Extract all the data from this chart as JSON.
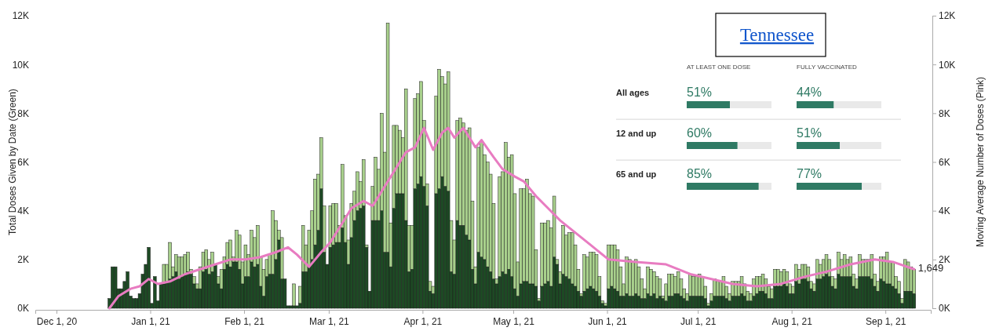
{
  "chart_data": [
    {
      "type": "bar",
      "stacked": true,
      "ylabel": "Total Doses Given by Date (Green)",
      "y2label": "Moving Average Number of Doses (Pink)",
      "x": [
        "2020-12-18",
        "2020-12-19",
        "2020-12-20",
        "2020-12-21",
        "2020-12-22",
        "2020-12-23",
        "2020-12-24",
        "2020-12-25",
        "2020-12-26",
        "2020-12-27",
        "2020-12-28",
        "2020-12-29",
        "2020-12-30",
        "2020-12-31",
        "2021-01-01",
        "2021-01-02",
        "2021-01-03",
        "2021-01-04",
        "2021-01-05",
        "2021-01-06",
        "2021-01-07",
        "2021-01-08",
        "2021-01-09",
        "2021-01-10",
        "2021-01-11",
        "2021-01-12",
        "2021-01-13",
        "2021-01-14",
        "2021-01-15",
        "2021-01-16",
        "2021-01-17",
        "2021-01-18",
        "2021-01-19",
        "2021-01-20",
        "2021-01-21",
        "2021-01-22",
        "2021-01-23",
        "2021-01-24",
        "2021-01-25",
        "2021-01-26",
        "2021-01-27",
        "2021-01-28",
        "2021-01-29",
        "2021-01-30",
        "2021-01-31",
        "2021-02-01",
        "2021-02-02",
        "2021-02-03",
        "2021-02-04",
        "2021-02-05",
        "2021-02-06",
        "2021-02-07",
        "2021-02-08",
        "2021-02-09",
        "2021-02-10",
        "2021-02-11",
        "2021-02-12",
        "2021-02-13",
        "2021-02-14",
        "2021-02-15",
        "2021-02-16",
        "2021-02-17",
        "2021-02-18",
        "2021-02-19",
        "2021-02-20",
        "2021-02-21",
        "2021-02-22",
        "2021-02-23",
        "2021-02-24",
        "2021-02-25",
        "2021-02-26",
        "2021-02-27",
        "2021-02-28",
        "2021-03-01",
        "2021-03-02",
        "2021-03-03",
        "2021-03-04",
        "2021-03-05",
        "2021-03-06",
        "2021-03-07",
        "2021-03-08",
        "2021-03-09",
        "2021-03-10",
        "2021-03-11",
        "2021-03-12",
        "2021-03-13",
        "2021-03-14",
        "2021-03-15",
        "2021-03-16",
        "2021-03-17",
        "2021-03-18",
        "2021-03-19",
        "2021-03-20",
        "2021-03-21",
        "2021-03-22",
        "2021-03-23",
        "2021-03-24",
        "2021-03-25",
        "2021-03-26",
        "2021-03-27",
        "2021-03-28",
        "2021-03-29",
        "2021-03-30",
        "2021-03-31",
        "2021-04-01",
        "2021-04-02",
        "2021-04-03",
        "2021-04-04",
        "2021-04-05",
        "2021-04-06",
        "2021-04-07",
        "2021-04-08",
        "2021-04-09",
        "2021-04-10",
        "2021-04-11",
        "2021-04-12",
        "2021-04-13",
        "2021-04-14",
        "2021-04-15",
        "2021-04-16",
        "2021-04-17",
        "2021-04-18",
        "2021-04-19",
        "2021-04-20",
        "2021-04-21",
        "2021-04-22",
        "2021-04-23",
        "2021-04-24",
        "2021-04-25",
        "2021-04-26",
        "2021-04-27",
        "2021-04-28",
        "2021-04-29",
        "2021-04-30",
        "2021-05-01",
        "2021-05-02",
        "2021-05-03",
        "2021-05-04",
        "2021-05-05",
        "2021-05-06",
        "2021-05-07",
        "2021-05-08",
        "2021-05-09",
        "2021-05-10",
        "2021-05-11",
        "2021-05-12",
        "2021-05-13",
        "2021-05-14",
        "2021-05-15",
        "2021-05-16",
        "2021-05-17",
        "2021-05-18",
        "2021-05-19",
        "2021-05-20",
        "2021-05-21",
        "2021-05-22",
        "2021-05-23",
        "2021-05-24",
        "2021-05-25",
        "2021-05-26",
        "2021-05-27",
        "2021-05-28",
        "2021-05-29",
        "2021-05-30",
        "2021-05-31",
        "2021-06-01",
        "2021-06-02",
        "2021-06-03",
        "2021-06-04",
        "2021-06-05",
        "2021-06-06",
        "2021-06-07",
        "2021-06-08",
        "2021-06-09",
        "2021-06-10",
        "2021-06-11",
        "2021-06-12",
        "2021-06-13",
        "2021-06-14",
        "2021-06-15",
        "2021-06-16",
        "2021-06-17",
        "2021-06-18",
        "2021-06-19",
        "2021-06-20",
        "2021-06-21",
        "2021-06-22",
        "2021-06-23",
        "2021-06-24",
        "2021-06-25",
        "2021-06-26",
        "2021-06-27",
        "2021-06-28",
        "2021-06-29",
        "2021-06-30",
        "2021-07-01",
        "2021-07-02",
        "2021-07-03",
        "2021-07-04",
        "2021-07-05",
        "2021-07-06",
        "2021-07-07",
        "2021-07-08",
        "2021-07-09",
        "2021-07-10",
        "2021-07-11",
        "2021-07-12",
        "2021-07-13",
        "2021-07-14",
        "2021-07-15",
        "2021-07-16",
        "2021-07-17",
        "2021-07-18",
        "2021-07-19",
        "2021-07-20",
        "2021-07-21",
        "2021-07-22",
        "2021-07-23",
        "2021-07-24",
        "2021-07-25",
        "2021-07-26",
        "2021-07-27",
        "2021-07-28",
        "2021-07-29",
        "2021-07-30",
        "2021-07-31",
        "2021-08-01",
        "2021-08-02",
        "2021-08-03",
        "2021-08-04",
        "2021-08-05",
        "2021-08-06",
        "2021-08-07",
        "2021-08-08",
        "2021-08-09",
        "2021-08-10",
        "2021-08-11",
        "2021-08-12",
        "2021-08-13",
        "2021-08-14",
        "2021-08-15",
        "2021-08-16",
        "2021-08-17",
        "2021-08-18",
        "2021-08-19",
        "2021-08-20",
        "2021-08-21",
        "2021-08-22",
        "2021-08-23",
        "2021-08-24",
        "2021-08-25",
        "2021-08-26",
        "2021-08-27",
        "2021-08-28",
        "2021-08-29",
        "2021-08-30",
        "2021-08-31",
        "2021-09-01",
        "2021-09-02",
        "2021-09-03",
        "2021-09-04",
        "2021-09-05",
        "2021-09-06",
        "2021-09-07",
        "2021-09-08",
        "2021-09-09",
        "2021-09-10"
      ],
      "xlim": [
        "2020-11-24",
        "2021-09-16"
      ],
      "xticks": [
        {
          "value": "2020-12-01",
          "label": "Dec 1, 20"
        },
        {
          "value": "2021-01-01",
          "label": "Jan 1, 21"
        },
        {
          "value": "2021-02-01",
          "label": "Feb 1, 21"
        },
        {
          "value": "2021-03-01",
          "label": "Mar 1, 21"
        },
        {
          "value": "2021-04-01",
          "label": "Apr 1, 21"
        },
        {
          "value": "2021-05-01",
          "label": "May 1, 21"
        },
        {
          "value": "2021-06-01",
          "label": "Jun 1, 21"
        },
        {
          "value": "2021-07-01",
          "label": "Jul 1, 21"
        },
        {
          "value": "2021-08-01",
          "label": "Aug 1, 21"
        },
        {
          "value": "2021-09-01",
          "label": "Sep 1, 21"
        }
      ],
      "ylim": [
        0,
        12
      ],
      "yticks": [
        {
          "value": 0,
          "label": "0K"
        },
        {
          "value": 2,
          "label": "2K"
        },
        {
          "value": 4,
          "label": "4K"
        },
        {
          "value": 6,
          "label": "6K"
        },
        {
          "value": 8,
          "label": "8K"
        },
        {
          "value": 10,
          "label": "10K"
        },
        {
          "value": 12,
          "label": "12K"
        }
      ],
      "y2lim": [
        0,
        12
      ],
      "y2ticks": [
        {
          "value": 0,
          "label": "0K"
        },
        {
          "value": 2,
          "label": "2K"
        },
        {
          "value": 4,
          "label": "4K"
        },
        {
          "value": 6,
          "label": "6K"
        },
        {
          "value": 8,
          "label": "8K"
        },
        {
          "value": 10,
          "label": "10K"
        },
        {
          "value": 12,
          "label": "12K"
        }
      ],
      "series": [
        {
          "color": "#1d4a24",
          "values": [
            0.4,
            1.7,
            1.7,
            0.8,
            0.8,
            1.1,
            1.5,
            0.5,
            0.4,
            0.4,
            0.6,
            1.4,
            1.8,
            2.5,
            0.2,
            1.3,
            0.3,
            1.0,
            1.0,
            1.1,
            1.2,
            1.3,
            1.5,
            1.2,
            1.3,
            1.4,
            1.5,
            1.4,
            1.0,
            0.8,
            0.8,
            1.5,
            1.6,
            1.4,
            1.5,
            1.8,
            1.0,
            0.8,
            1.6,
            1.8,
            1.7,
            1.9,
            1.9,
            1.6,
            1.0,
            1.3,
            1.3,
            1.9,
            1.7,
            1.8,
            0.9,
            0.5,
            1.3,
            1.4,
            1.4,
            2.0,
            2.8,
            1.2,
            1.2,
            0.1,
            0.1,
            0.1,
            0.1,
            0.2,
            1.5,
            1.5,
            1.7,
            2.0,
            2.6,
            3.2,
            4.9,
            2.3,
            1.8,
            2.5,
            2.6,
            2.7,
            2.7,
            3.3,
            2.7,
            1.8,
            2.9,
            3.6,
            4.0,
            4.1,
            4.2,
            2.5,
            0.7,
            3.6,
            3.6,
            3.6,
            4.0,
            2.3,
            2.3,
            1.7,
            4.1,
            4.7,
            4.7,
            4.7,
            3.6,
            1.5,
            1.6,
            4.9,
            5.1,
            5.4,
            5.0,
            4.2,
            0.7,
            0.6,
            4.7,
            4.9,
            5.4,
            5.0,
            4.8,
            1.5,
            1.4,
            3.6,
            3.4,
            3.4,
            3.0,
            2.8,
            1.6,
            1.0,
            2.3,
            2.1,
            2.0,
            1.7,
            1.5,
            1.2,
            1.0,
            1.3,
            1.5,
            1.4,
            1.6,
            1.3,
            0.8,
            0.5,
            1.0,
            1.1,
            1.1,
            1.0,
            1.0,
            0.9,
            0.3,
            0.9,
            1.0,
            1.1,
            0.9,
            2.1,
            1.8,
            1.0,
            1.4,
            1.3,
            1.2,
            1.0,
            0.9,
            0.7,
            0.5,
            0.7,
            0.8,
            0.9,
            0.8,
            0.7,
            0.5,
            0.2,
            0.1,
            0.8,
            0.9,
            0.8,
            0.7,
            0.5,
            0.5,
            0.6,
            0.5,
            0.5,
            0.6,
            0.5,
            0.4,
            0.4,
            0.6,
            0.5,
            0.6,
            0.4,
            0.5,
            0.4,
            0.3,
            0.5,
            0.5,
            0.6,
            0.6,
            0.5,
            0.4,
            0.3,
            0.5,
            0.5,
            0.5,
            0.5,
            0.5,
            0.4,
            0.1,
            0.3,
            0.5,
            0.5,
            0.5,
            0.5,
            0.4,
            0.3,
            0.5,
            0.5,
            0.5,
            0.6,
            0.5,
            0.3,
            0.3,
            0.5,
            0.6,
            0.7,
            0.7,
            0.6,
            0.4,
            0.4,
            0.9,
            0.9,
            0.9,
            1.0,
            0.9,
            0.6,
            0.6,
            1.1,
            1.0,
            1.2,
            1.2,
            1.1,
            0.8,
            0.7,
            1.2,
            1.2,
            1.3,
            1.4,
            1.3,
            0.9,
            0.8,
            1.4,
            1.3,
            1.3,
            1.3,
            1.3,
            0.9,
            0.8,
            1.3,
            1.3,
            1.3,
            1.3,
            1.2,
            0.9,
            0.7,
            1.2,
            1.1,
            1.0,
            1.0,
            0.9,
            0.8,
            0.6,
            0.2,
            0.7,
            0.7,
            0.7,
            0.6
          ]
        },
        {
          "color": "#a8d08c",
          "values": [
            0,
            0,
            0,
            0,
            0,
            0,
            0,
            0,
            0,
            0,
            0,
            0,
            0,
            0,
            0,
            0,
            0,
            0,
            0.8,
            0.7,
            1.5,
            0.4,
            0.7,
            0.9,
            0.8,
            0.8,
            0.8,
            0.2,
            0.3,
            0.2,
            0.9,
            0.8,
            0.8,
            0.6,
            0.8,
            0,
            0.3,
            0.8,
            0.5,
            0.9,
            1.1,
            0.2,
            1.3,
            1.4,
            0.9,
            1.3,
            0.9,
            1.3,
            1.2,
            1.6,
            1.2,
            1.1,
            0.7,
            0.8,
            2.6,
            1.6,
            0.4,
            1.7,
            0,
            0,
            0,
            0.9,
            0,
            0.7,
            1.9,
            1.1,
            1.5,
            2.0,
            2.7,
            2.3,
            2.1,
            1.9,
            0,
            1.7,
            1.7,
            1.6,
            0.7,
            2.6,
            1.1,
            1.0,
            1.4,
            1.2,
            1.6,
            1.1,
            1.9,
            0.1,
            0,
            1.4,
            2.6,
            2.1,
            4.0,
            4.1,
            9.4,
            1.8,
            3.4,
            2.8,
            2.6,
            2.3,
            5.4,
            1.9,
            1.8,
            3.7,
            3.7,
            3.9,
            2.7,
            0.9,
            0.4,
            0.3,
            4.0,
            4.9,
            4.1,
            4.2,
            4.9,
            2.1,
            1.4,
            4.1,
            4.4,
            4.2,
            4.3,
            4.6,
            2.8,
            0.7,
            4.3,
            4.7,
            4.3,
            4.3,
            4.0,
            3.1,
            0.2,
            4.1,
            4.1,
            5.4,
            4.6,
            5.0,
            3.9,
            1.4,
            3.9,
            3.8,
            4.2,
            3.7,
            3.6,
            1.5,
            0.1,
            2.6,
            2.5,
            2.5,
            2.4,
            2.5,
            0.2,
            0.5,
            2.0,
            1.7,
            1.9,
            2.1,
            1.7,
            0.9,
            0.1,
            1.5,
            1.3,
            1.4,
            1.5,
            1.5,
            0.8,
            0.1,
            0.1,
            1.8,
            1.7,
            1.8,
            1.7,
            1.2,
            0.5,
            1.5,
            1.5,
            1.4,
            1.4,
            1.2,
            0.8,
            0.4,
            1.1,
            1.1,
            0.9,
            0.9,
            0.7,
            0.1,
            0.7,
            0.9,
            0.9,
            0.7,
            0.9,
            0.7,
            0.4,
            0.3,
            0.9,
            0.8,
            0.8,
            0.9,
            0.8,
            0.5,
            0.1,
            0.3,
            0.7,
            0.6,
            0.6,
            0.8,
            0.5,
            0.3,
            0.6,
            0.6,
            0.6,
            0.7,
            0.5,
            0.4,
            0.3,
            0.7,
            0.7,
            0.6,
            0.7,
            0.6,
            0.5,
            0.4,
            0.7,
            0.7,
            0.6,
            0.6,
            0.6,
            0.4,
            0.3,
            0.7,
            0.6,
            0.6,
            0.6,
            0.6,
            0.3,
            0.3,
            0.8,
            0.6,
            0.7,
            0.8,
            0.7,
            0.4,
            0.4,
            0.9,
            0.7,
            0.9,
            0.7,
            0.8,
            0.5,
            0.4,
            0.9,
            0.7,
            0.7,
            0.7,
            1.0,
            0.5,
            0.4,
            0.9,
            1.0,
            1.3,
            0.9,
            1.0,
            0.5,
            0.5,
            0.2,
            1.3,
            1.2,
            1.0,
            1.0
          ]
        },
        {
          "type": "line",
          "axis": "y2",
          "color": "#e87cc1",
          "x": [
            "2020-12-18",
            "2020-12-21",
            "2020-12-25",
            "2020-12-28",
            "2020-12-31",
            "2021-01-03",
            "2021-01-07",
            "2021-01-12",
            "2021-01-17",
            "2021-01-22",
            "2021-01-27",
            "2021-02-01",
            "2021-02-06",
            "2021-02-11",
            "2021-02-15",
            "2021-02-18",
            "2021-02-22",
            "2021-02-26",
            "2021-03-01",
            "2021-03-04",
            "2021-03-08",
            "2021-03-12",
            "2021-03-15",
            "2021-03-18",
            "2021-03-22",
            "2021-03-26",
            "2021-03-29",
            "2021-04-01",
            "2021-04-04",
            "2021-04-07",
            "2021-04-09",
            "2021-04-11",
            "2021-04-14",
            "2021-04-18",
            "2021-04-20",
            "2021-04-24",
            "2021-04-27",
            "2021-05-01",
            "2021-05-04",
            "2021-05-08",
            "2021-05-12",
            "2021-05-16",
            "2021-05-21",
            "2021-05-26",
            "2021-06-01",
            "2021-06-10",
            "2021-06-20",
            "2021-06-28",
            "2021-07-05",
            "2021-07-12",
            "2021-07-20",
            "2021-07-28",
            "2021-08-05",
            "2021-08-12",
            "2021-08-20",
            "2021-08-28",
            "2021-09-03",
            "2021-09-10"
          ],
          "values": [
            0,
            0.5,
            0.8,
            0.9,
            1.2,
            1.0,
            1.1,
            1.4,
            1.6,
            1.8,
            2.0,
            2.0,
            2.1,
            2.3,
            2.5,
            2.2,
            1.7,
            2.3,
            2.7,
            3.3,
            4.1,
            4.4,
            4.2,
            4.8,
            5.6,
            6.4,
            6.6,
            7.4,
            6.5,
            7.2,
            7.4,
            7.0,
            7.4,
            6.6,
            6.9,
            6.2,
            5.7,
            5.4,
            5.2,
            4.6,
            4.1,
            3.6,
            3.1,
            2.6,
            2.0,
            1.9,
            1.8,
            1.4,
            1.2,
            1.0,
            0.9,
            1.0,
            1.3,
            1.5,
            1.8,
            2.0,
            1.9,
            1.6
          ]
        }
      ],
      "annotations": [
        {
          "text": "1,649",
          "x": "2021-09-10",
          "y": 1.649
        }
      ]
    },
    {
      "type": "bar",
      "orientation": "horizontal",
      "stacked": true,
      "title": "Tennessee",
      "categories": [
        "All ages",
        "12 and up",
        "65 and up"
      ],
      "xlim": [
        0,
        100
      ],
      "tick_labels": "y",
      "series": [
        {
          "name": "AT LEAST ONE DOSE",
          "color": "#2f7a64",
          "values": [
            51,
            60,
            85
          ],
          "value_labels": [
            "51%",
            "60%",
            "85%"
          ]
        },
        {
          "color": "#e9e9e9",
          "values": [
            49,
            40,
            15
          ]
        }
      ]
    },
    {
      "type": "bar",
      "orientation": "horizontal",
      "stacked": true,
      "categories": [
        null,
        null,
        null
      ],
      "xlim": [
        0,
        100
      ],
      "series": [
        {
          "name": "FULLY VACCINATED",
          "color": "#2f7a64",
          "values": [
            44,
            51,
            77
          ],
          "value_labels": [
            "44%",
            "51%",
            "77%"
          ]
        },
        {
          "color": "#e9e9e9",
          "values": [
            56,
            49,
            23
          ]
        }
      ]
    }
  ]
}
